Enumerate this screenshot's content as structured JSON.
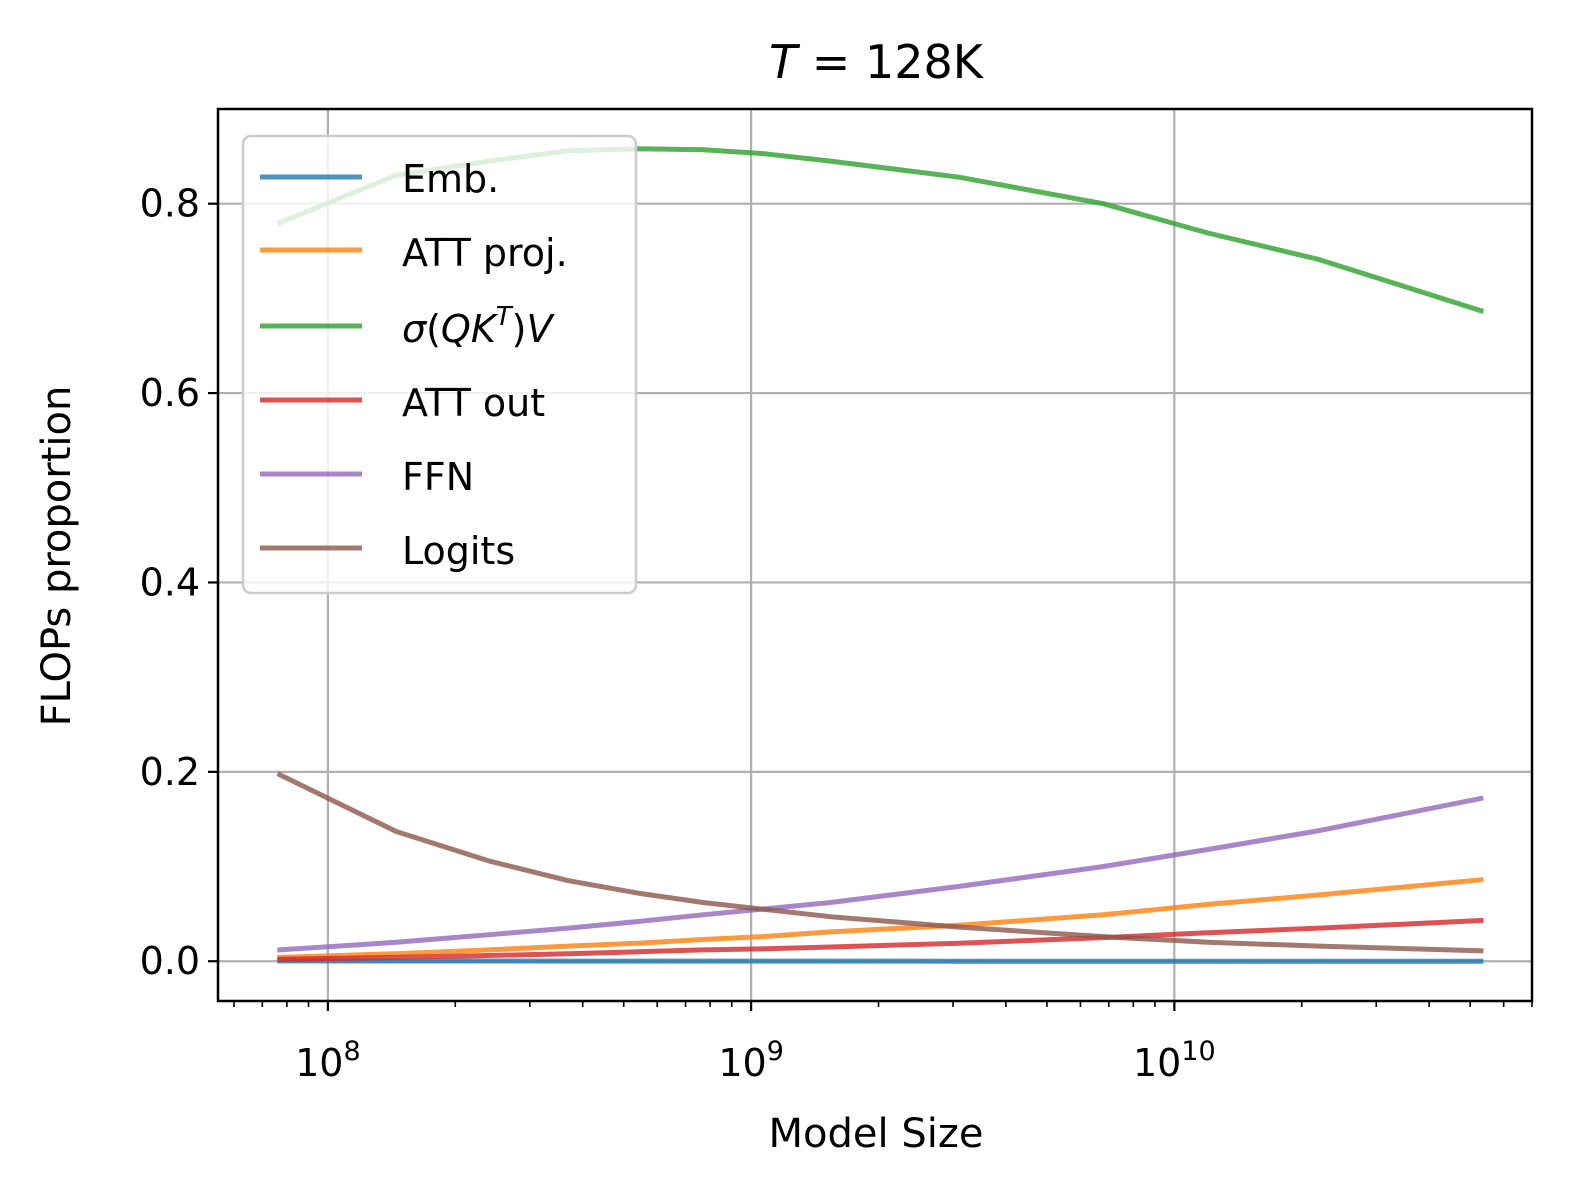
{
  "chart_data": {
    "type": "line",
    "title": {
      "prefix": "T",
      "value": " = 128K"
    },
    "xlabel": "Model Size",
    "ylabel": "FLOPs proportion",
    "xscale": "log",
    "xlim": [
      55000000,
      70000000000
    ],
    "ylim": [
      -0.042,
      0.9
    ],
    "grid": true,
    "legend_position": "top-left",
    "x_major_ticks": [
      {
        "value": 100000000,
        "base": "10",
        "exp": "8"
      },
      {
        "value": 1000000000,
        "base": "10",
        "exp": "9"
      },
      {
        "value": 10000000000,
        "base": "10",
        "exp": "10"
      }
    ],
    "y_ticks": [
      {
        "value": 0.0,
        "label": "0.0"
      },
      {
        "value": 0.2,
        "label": "0.2"
      },
      {
        "value": 0.4,
        "label": "0.4"
      },
      {
        "value": 0.6,
        "label": "0.6"
      },
      {
        "value": 0.8,
        "label": "0.8"
      }
    ],
    "x": [
      77000000,
      145000000,
      240000000,
      370000000,
      540000000,
      770000000,
      1060000000,
      1540000000,
      3100000000,
      6800000000,
      12000000000,
      22000000000,
      53000000000
    ],
    "series": [
      {
        "name": "Emb.",
        "color": "#1f77b4",
        "values": [
          0.0003,
          0.0002,
          0.0002,
          0.0001,
          0.0001,
          0.0001,
          0.0001,
          0.0001,
          0.0,
          0.0,
          0.0,
          0.0,
          0.0
        ]
      },
      {
        "name": "ATT proj.",
        "color": "#ff7f0e",
        "values": [
          0.004,
          0.008,
          0.012,
          0.016,
          0.019,
          0.023,
          0.026,
          0.031,
          0.038,
          0.049,
          0.06,
          0.07,
          0.086
        ]
      },
      {
        "name": "sigma(QK^T)V",
        "label": {
          "sigma": "σ",
          "open": "(",
          "q": "Q",
          "k": "K",
          "sup": "T",
          "close": ")",
          "v": "V"
        },
        "color": "#2ca02c",
        "values": [
          0.78,
          0.83,
          0.845,
          0.856,
          0.858,
          0.857,
          0.853,
          0.845,
          0.828,
          0.8,
          0.769,
          0.741,
          0.687
        ]
      },
      {
        "name": "ATT out",
        "label": "ATT out",
        "color": "#d62728",
        "values": [
          0.002,
          0.004,
          0.006,
          0.008,
          0.01,
          0.012,
          0.013,
          0.015,
          0.019,
          0.025,
          0.03,
          0.035,
          0.043
        ]
      },
      {
        "name": "FFN",
        "label": "FFN",
        "color": "#9467bd",
        "values": [
          0.012,
          0.02,
          0.028,
          0.035,
          0.042,
          0.049,
          0.055,
          0.062,
          0.079,
          0.1,
          0.118,
          0.138,
          0.172
        ]
      },
      {
        "name": "Logits",
        "label": "Logits",
        "color": "#8c564b",
        "values": [
          0.197,
          0.137,
          0.106,
          0.085,
          0.072,
          0.062,
          0.055,
          0.047,
          0.036,
          0.026,
          0.02,
          0.016,
          0.011
        ]
      }
    ]
  }
}
